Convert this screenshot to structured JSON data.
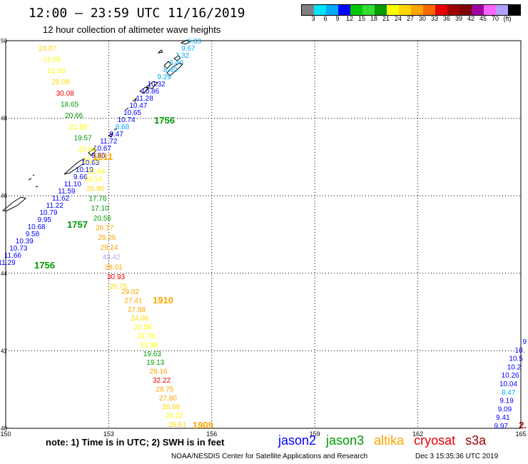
{
  "title": "12:00 – 23:59 UTC 11/16/2019",
  "subtitle": "12 hour collection of altimeter wave heights",
  "legend": {
    "colors": [
      "#808080",
      "#00e5ff",
      "#00aaff",
      "#0000ff",
      "#00c800",
      "#33dd33",
      "#009900",
      "#ffff00",
      "#ffd700",
      "#ffa500",
      "#ff6a00",
      "#e60000",
      "#a00000",
      "#800000",
      "#a000a0",
      "#ff66ff",
      "#b0a0ff",
      "#000000"
    ],
    "labels": [
      "3",
      "6",
      "9",
      "12",
      "15",
      "18",
      "21",
      "24",
      "27",
      "30",
      "33",
      "36",
      "39",
      "42",
      "45",
      "70",
      "(ft)"
    ]
  },
  "axes": {
    "lon_ticks": [
      "150",
      "153",
      "156",
      "159",
      "162",
      "165"
    ],
    "lat_ticks": [
      "50",
      "48",
      "46",
      "44",
      "42",
      "40"
    ]
  },
  "tracks": [
    {
      "time": "1756",
      "color": "#009900",
      "values": [
        {
          "v": "6.83",
          "c": "#00aaff"
        },
        {
          "v": "9.67",
          "c": "#00aaff"
        },
        {
          "v": "7.32",
          "c": "#00aaff"
        },
        {
          "v": "6.40",
          "c": "#00aaff"
        },
        {
          "v": "8.40",
          "c": "#00aaff"
        },
        {
          "v": "9.29",
          "c": "#00aaff"
        },
        {
          "v": "10.32",
          "c": "#0000ff"
        },
        {
          "v": "10.86",
          "c": "#0000ff"
        },
        {
          "v": "11.28",
          "c": "#0000ff"
        },
        {
          "v": "10.47",
          "c": "#0000ff"
        },
        {
          "v": "10.65",
          "c": "#0000ff"
        },
        {
          "v": "10.74",
          "c": "#0000ff"
        },
        {
          "v": "8.68",
          "c": "#00aaff"
        },
        {
          "v": "9.47",
          "c": "#0000ff"
        },
        {
          "v": "11.72",
          "c": "#0000ff"
        },
        {
          "v": "10.67",
          "c": "#0000ff"
        },
        {
          "v": "9.86",
          "c": "#0000ff"
        },
        {
          "v": "10.63",
          "c": "#0000ff"
        },
        {
          "v": "10.19",
          "c": "#0000ff"
        },
        {
          "v": "9.66",
          "c": "#0000ff"
        },
        {
          "v": "11.10",
          "c": "#0000ff"
        },
        {
          "v": "11.59",
          "c": "#0000ff"
        },
        {
          "v": "11.62",
          "c": "#0000ff"
        },
        {
          "v": "11.22",
          "c": "#0000ff"
        },
        {
          "v": "10.79",
          "c": "#0000ff"
        },
        {
          "v": "9.95",
          "c": "#0000ff"
        },
        {
          "v": "10.68",
          "c": "#0000ff"
        },
        {
          "v": "9.58",
          "c": "#0000ff"
        },
        {
          "v": "10.39",
          "c": "#0000ff"
        },
        {
          "v": "10.73",
          "c": "#0000ff"
        },
        {
          "v": "11.66",
          "c": "#0000ff"
        },
        {
          "v": "11.29",
          "c": "#0000ff"
        }
      ]
    },
    {
      "time": "1911",
      "color": "#ffa500",
      "values": [
        {
          "v": "24.07",
          "c": "#ffd700"
        },
        {
          "v": "21.56",
          "c": "#ffff00"
        },
        {
          "v": "21.60",
          "c": "#ffff00"
        },
        {
          "v": "25.09",
          "c": "#ffd700"
        },
        {
          "v": "30.08",
          "c": "#e60000"
        },
        {
          "v": "18.65",
          "c": "#009900"
        },
        {
          "v": "20.66",
          "c": "#009900"
        },
        {
          "v": "21.88",
          "c": "#ffff00"
        },
        {
          "v": "19.57",
          "c": "#009900"
        },
        {
          "v": "23.39",
          "c": "#ffff00"
        },
        {
          "v": "23.18",
          "c": "#ffff00"
        },
        {
          "v": "22.64",
          "c": "#ffff00"
        }
      ]
    },
    {
      "time": "1757",
      "color": "#009900",
      "values": [
        {
          "v": "24.14",
          "c": "#ffff00"
        },
        {
          "v": "25.90",
          "c": "#ffd700"
        },
        {
          "v": "17.76",
          "c": "#009900"
        },
        {
          "v": "17.10",
          "c": "#009900"
        },
        {
          "v": "20.56",
          "c": "#009900"
        },
        {
          "v": "28.77",
          "c": "#ffa500"
        },
        {
          "v": "29.26",
          "c": "#ffa500"
        },
        {
          "v": "29.24",
          "c": "#ffa500"
        },
        {
          "v": "43.42",
          "c": "#b0a0ff"
        },
        {
          "v": "28.01",
          "c": "#ffa500"
        },
        {
          "v": "30.93",
          "c": "#e60000"
        },
        {
          "v": "26.75",
          "c": "#ffd700"
        }
      ]
    },
    {
      "time": "1910",
      "color": "#ffa500",
      "values": [
        {
          "v": "29.02",
          "c": "#ffa500"
        },
        {
          "v": "27.41",
          "c": "#ffa500"
        },
        {
          "v": "27.88",
          "c": "#ffa500"
        },
        {
          "v": "24.06",
          "c": "#ffd700"
        },
        {
          "v": "22.58",
          "c": "#ffff00"
        },
        {
          "v": "22.78",
          "c": "#ffff00"
        },
        {
          "v": "23.38",
          "c": "#ffff00"
        },
        {
          "v": "19.63",
          "c": "#009900"
        },
        {
          "v": "19.13",
          "c": "#009900"
        },
        {
          "v": "29.16",
          "c": "#ffa500"
        },
        {
          "v": "32.22",
          "c": "#e60000"
        },
        {
          "v": "28.75",
          "c": "#ffa500"
        },
        {
          "v": "27.80",
          "c": "#ffa500"
        },
        {
          "v": "26.66",
          "c": "#ffd700"
        },
        {
          "v": "23.22",
          "c": "#ffff00"
        },
        {
          "v": "26.61",
          "c": "#ffd700"
        }
      ]
    },
    {
      "time": "1909",
      "color": "#ffa500",
      "values": []
    },
    {
      "time": "",
      "color": "#0000ff",
      "values": [
        {
          "v": "9",
          "c": "#0000ff"
        },
        {
          "v": "10.",
          "c": "#0000ff"
        },
        {
          "v": "10.5",
          "c": "#0000ff"
        },
        {
          "v": "10.2",
          "c": "#0000ff"
        },
        {
          "v": "10.26",
          "c": "#0000ff"
        },
        {
          "v": "10.04",
          "c": "#0000ff"
        },
        {
          "v": "8.47",
          "c": "#00aaff"
        },
        {
          "v": "9.19",
          "c": "#0000ff"
        },
        {
          "v": "9.09",
          "c": "#0000ff"
        },
        {
          "v": "9.41",
          "c": "#0000ff"
        },
        {
          "v": "9.97",
          "c": "#0000ff"
        }
      ]
    }
  ],
  "extra_labels": [
    {
      "v": "2.",
      "c": "#a00000"
    }
  ],
  "satellites": [
    {
      "name": "jason2",
      "color": "#0000ff"
    },
    {
      "name": "jason3",
      "color": "#009900"
    },
    {
      "name": "altika",
      "color": "#ffa500"
    },
    {
      "name": "cryosat",
      "color": "#e60000"
    },
    {
      "name": "s3a",
      "color": "#a00000"
    }
  ],
  "note": "note: 1) Time is in UTC; 2) SWH is in feet",
  "footer": "NOAA/NESDIS Center for Satellite Applications and Research",
  "footer_timestamp": "Dec  3 15:35:36 UTC 2019"
}
